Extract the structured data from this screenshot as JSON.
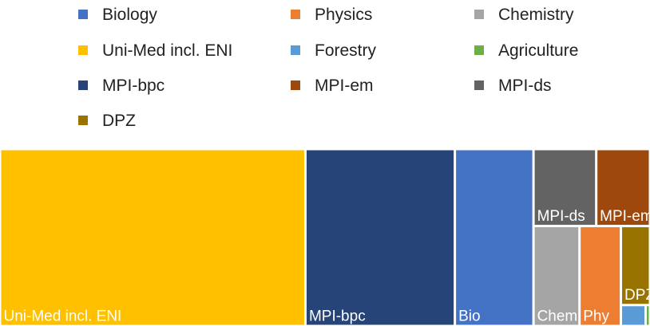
{
  "chart_data": {
    "type": "treemap",
    "legend": [
      {
        "name": "Biology",
        "color": "#4472C4"
      },
      {
        "name": "Physics",
        "color": "#ED7D31"
      },
      {
        "name": "Chemistry",
        "color": "#A5A5A5"
      },
      {
        "name": "Uni-Med incl. ENI",
        "color": "#FFC000"
      },
      {
        "name": "Forestry",
        "color": "#5B9BD5"
      },
      {
        "name": "Agriculture",
        "color": "#70AD47"
      },
      {
        "name": "MPI-bpc",
        "color": "#264478"
      },
      {
        "name": "MPI-em",
        "color": "#9E480E"
      },
      {
        "name": "MPI-ds",
        "color": "#636363"
      },
      {
        "name": "DPZ",
        "color": "#997300"
      }
    ],
    "tiles": [
      {
        "series": "Uni-Med incl. ENI",
        "label": "Uni-Med incl. ENI",
        "value": 47.0
      },
      {
        "series": "MPI-bpc",
        "label": "MPI-bpc",
        "value": 23.0
      },
      {
        "series": "Biology",
        "label": "Bio",
        "value": 12.1
      },
      {
        "series": "MPI-ds",
        "label": "MPI-ds",
        "value": 4.2
      },
      {
        "series": "MPI-em",
        "label": "MPI-em",
        "value": 3.6
      },
      {
        "series": "Chemistry",
        "label": "Chem",
        "value": 4.0
      },
      {
        "series": "Physics",
        "label": "Phy",
        "value": 3.6
      },
      {
        "series": "DPZ",
        "label": "DPZ",
        "value": 2.0
      },
      {
        "series": "Forestry",
        "label": "",
        "value": 0.45
      },
      {
        "series": "Agriculture",
        "label": "",
        "value": 0.08
      }
    ]
  }
}
